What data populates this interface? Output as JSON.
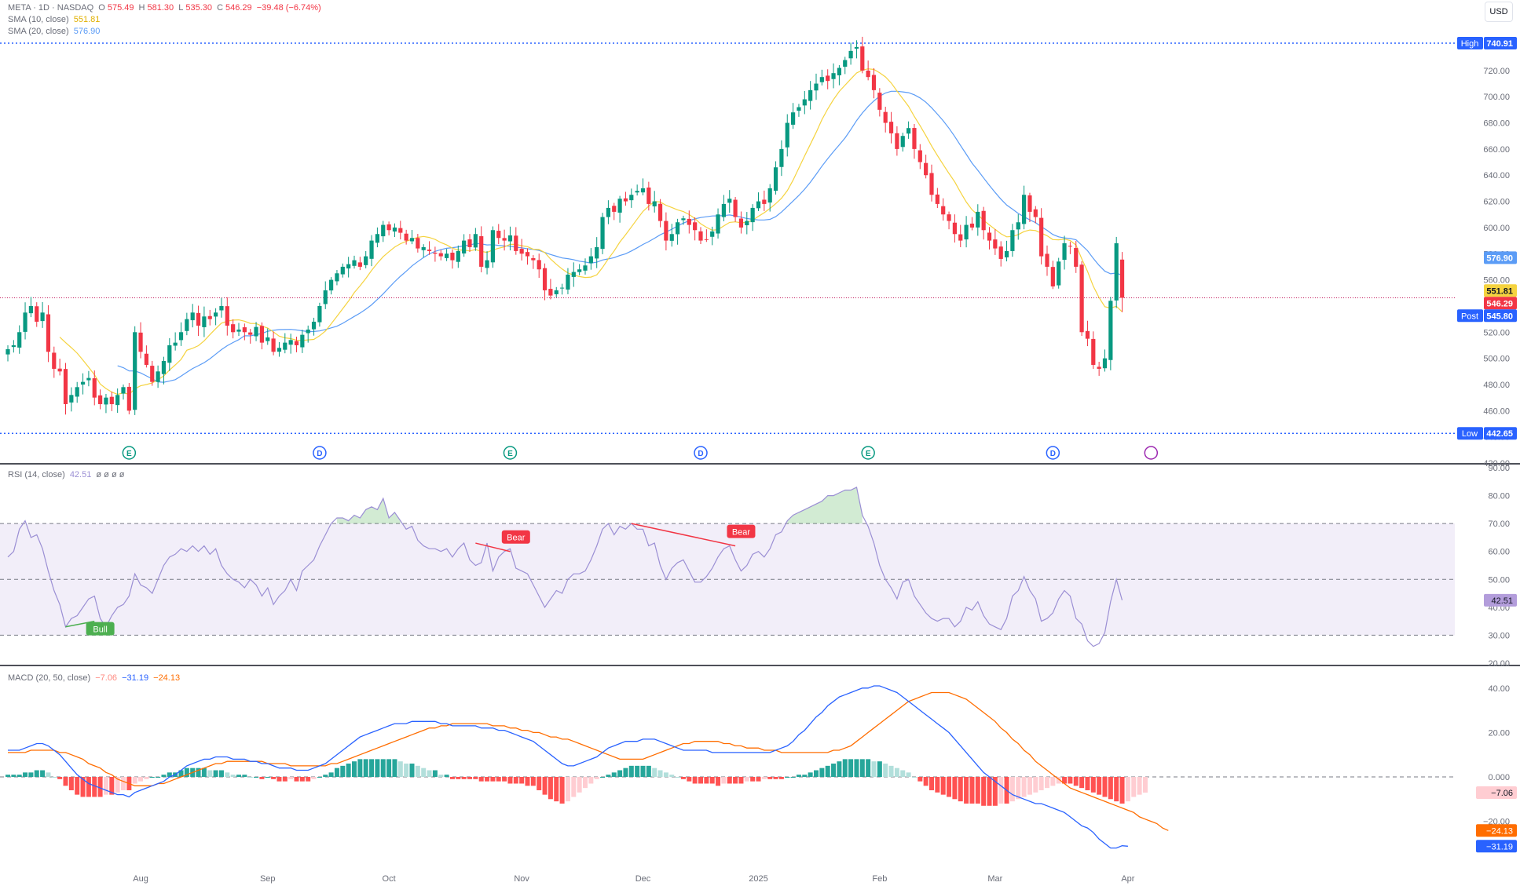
{
  "header": {
    "symbol": "META · 1D · NASDAQ",
    "o_label": "O",
    "o": "575.49",
    "h_label": "H",
    "h": "581.30",
    "l_label": "L",
    "l": "535.30",
    "c_label": "C",
    "c": "546.29",
    "change": "−39.48 (−6.74%)",
    "currency": "USD"
  },
  "indicators": {
    "sma10": {
      "label": "SMA (10, close)",
      "value": "551.81",
      "color": "#f5d33f"
    },
    "sma20": {
      "label": "SMA (20, close)",
      "value": "576.90",
      "color": "#5b9cf6"
    },
    "rsi": {
      "label": "RSI (14, close)",
      "value": "42.51",
      "extra": "ø ø ø ø",
      "color": "#9b8fd4"
    },
    "macd": {
      "label": "MACD (20, 50, close)",
      "hist": "−7.06",
      "macd": "−31.19",
      "signal": "−24.13",
      "macd_color": "#2962ff",
      "signal_color": "#ff6d00"
    }
  },
  "colors": {
    "up": "#089981",
    "down": "#f23645",
    "grid_text": "#6a6d78"
  },
  "chart_data": [
    {
      "type": "candlestick",
      "ylim": [
        420,
        745
      ],
      "yticks": [
        420,
        440,
        460,
        480,
        500,
        520,
        540,
        560,
        580,
        600,
        620,
        640,
        660,
        680,
        700,
        720
      ],
      "x_labels": [
        {
          "i": 23,
          "label": "Aug"
        },
        {
          "i": 45,
          "label": "Sep"
        },
        {
          "i": 66,
          "label": "Oct"
        },
        {
          "i": 89,
          "label": "Nov"
        },
        {
          "i": 110,
          "label": "Dec"
        },
        {
          "i": 130,
          "label": "2025"
        },
        {
          "i": 151,
          "label": "Feb"
        },
        {
          "i": 171,
          "label": "Mar"
        },
        {
          "i": 194,
          "label": "Apr"
        }
      ],
      "events": [
        {
          "i": 21,
          "label": "E"
        },
        {
          "i": 54,
          "label": "D"
        },
        {
          "i": 87,
          "label": "E"
        },
        {
          "i": 120,
          "label": "D"
        },
        {
          "i": 149,
          "label": "E"
        },
        {
          "i": 181,
          "label": "D"
        }
      ],
      "levels": {
        "high": {
          "label": "High",
          "value": 740.91
        },
        "low": {
          "label": "Low",
          "value": 442.65
        }
      },
      "price_labels": [
        {
          "value": 576.9,
          "text": "576.90",
          "bg": "#5b9cf6",
          "fg": "#ffffff"
        },
        {
          "value": 551.81,
          "text": "551.81",
          "bg": "#f5d33f",
          "fg": "#131722"
        },
        {
          "value": 546.29,
          "text": "546.29",
          "bg": "#f23645",
          "fg": "#ffffff"
        },
        {
          "value": 545.8,
          "text": "545.80",
          "bg": "#2962ff",
          "fg": "#ffffff",
          "tag": "Post"
        }
      ],
      "closes": [
        507,
        510,
        520,
        535,
        540,
        528,
        535,
        505,
        492,
        490,
        465,
        472,
        478,
        482,
        485,
        470,
        465,
        470,
        465,
        472,
        478,
        460,
        520,
        505,
        495,
        482,
        490,
        498,
        510,
        512,
        520,
        530,
        535,
        525,
        532,
        530,
        535,
        540,
        525,
        520,
        522,
        520,
        518,
        524,
        512,
        516,
        505,
        508,
        512,
        514,
        510,
        518,
        522,
        528,
        540,
        552,
        560,
        565,
        570,
        572,
        575,
        570,
        578,
        590,
        595,
        602,
        598,
        600,
        596,
        590,
        592,
        584,
        585,
        582,
        580,
        578,
        580,
        575,
        582,
        590,
        585,
        595,
        570,
        575,
        598,
        592,
        590,
        594,
        582,
        580,
        578,
        575,
        568,
        552,
        548,
        552,
        554,
        564,
        566,
        568,
        571,
        578,
        585,
        608,
        615,
        612,
        622,
        620,
        625,
        628,
        630,
        618,
        620,
        605,
        590,
        595,
        604,
        607,
        602,
        598,
        590,
        591,
        597,
        610,
        618,
        622,
        608,
        600,
        605,
        615,
        620,
        618,
        630,
        646,
        660,
        680,
        688,
        692,
        698,
        705,
        710,
        715,
        712,
        718,
        722,
        728,
        735,
        738,
        720,
        715,
        705,
        690,
        680,
        672,
        660,
        670,
        676,
        660,
        650,
        640,
        625,
        618,
        610,
        605,
        595,
        590,
        602,
        600,
        612,
        598,
        590,
        584,
        576,
        582,
        598,
        604,
        625,
        612,
        608,
        578,
        570,
        555,
        574,
        588,
        586,
        570,
        520,
        515,
        495,
        492,
        500,
        544,
        588,
        546
      ]
    },
    {
      "type": "line",
      "name": "RSI (14, close)",
      "ylim": [
        20,
        90
      ],
      "yticks": [
        20,
        30,
        40,
        50,
        60,
        70,
        80,
        90
      ],
      "bands": {
        "upper": 70,
        "middle": 50,
        "lower": 30
      },
      "values": [
        58,
        60,
        68,
        71,
        65,
        66,
        61,
        53,
        46,
        41,
        33,
        36,
        37,
        40,
        43,
        44,
        36,
        33,
        37,
        40,
        41,
        44,
        52,
        48,
        47,
        45,
        50,
        55,
        58,
        59,
        61,
        60,
        62,
        60,
        62,
        59,
        61,
        55,
        52,
        50,
        49,
        47,
        50,
        48,
        44,
        47,
        41,
        44,
        46,
        50,
        46,
        53,
        55,
        57,
        62,
        66,
        70,
        72,
        72,
        71,
        73,
        72,
        75,
        76,
        75,
        79,
        72,
        74,
        71,
        68,
        69,
        64,
        62,
        61,
        61,
        60,
        61,
        58,
        61,
        63,
        57,
        55,
        56,
        63,
        53,
        58,
        60,
        61,
        54,
        53,
        52,
        48,
        44,
        40,
        43,
        46,
        45,
        50,
        52,
        52,
        53,
        57,
        62,
        68,
        70,
        66,
        69,
        68,
        70,
        68,
        68,
        62,
        63,
        55,
        50,
        54,
        56,
        57,
        53,
        49,
        49,
        51,
        54,
        58,
        61,
        62,
        57,
        53,
        55,
        59,
        60,
        58,
        61,
        66,
        67,
        71,
        73,
        74,
        75,
        76,
        77,
        78,
        80,
        80,
        81,
        82,
        82,
        83,
        73,
        69,
        63,
        55,
        50,
        47,
        43,
        49,
        50,
        44,
        41,
        38,
        36,
        35,
        36,
        36,
        33,
        35,
        40,
        39,
        42,
        37,
        34,
        33,
        32,
        36,
        44,
        46,
        51,
        46,
        43,
        35,
        36,
        38,
        43,
        46,
        44,
        36,
        34,
        28,
        26,
        27,
        31,
        42,
        50,
        42.51
      ]
    },
    {
      "type": "line",
      "name": "MACD (20, 50, close)",
      "ylim": [
        -48,
        45
      ],
      "yticks": [
        -20,
        0,
        20,
        40
      ],
      "macd": [
        12,
        12,
        12,
        13,
        14,
        15,
        15,
        14,
        12,
        10,
        7,
        4,
        1,
        -1,
        -3,
        -4,
        -5,
        -6,
        -7,
        -8,
        -8,
        -9,
        -7,
        -6,
        -5,
        -4,
        -3,
        -2,
        0,
        1,
        3,
        5,
        6,
        7,
        8,
        8,
        9,
        9,
        9,
        8,
        8,
        8,
        7,
        7,
        6,
        6,
        5,
        4,
        4,
        4,
        3,
        3,
        3,
        4,
        5,
        6,
        8,
        10,
        12,
        14,
        16,
        18,
        19,
        20,
        21,
        22,
        23,
        24,
        24,
        24,
        25,
        25,
        25,
        25,
        25,
        24,
        24,
        23,
        23,
        23,
        23,
        23,
        22,
        22,
        22,
        21,
        21,
        20,
        19,
        18,
        17,
        16,
        14,
        12,
        10,
        8,
        6,
        5,
        5,
        6,
        7,
        8,
        9,
        11,
        13,
        14,
        15,
        16,
        16,
        16,
        17,
        17,
        17,
        16,
        15,
        14,
        13,
        12,
        12,
        12,
        12,
        12,
        11,
        11,
        11,
        11,
        11,
        11,
        11,
        11,
        11,
        11,
        11,
        12,
        13,
        14,
        16,
        19,
        21,
        24,
        27,
        29,
        32,
        34,
        36,
        37,
        38,
        39,
        40,
        40,
        41,
        41,
        40,
        39,
        38,
        36,
        34,
        32,
        30,
        28,
        26,
        24,
        22,
        20,
        17,
        14,
        11,
        8,
        5,
        2,
        0,
        -2,
        -4,
        -6,
        -8,
        -9,
        -10,
        -11,
        -12,
        -12,
        -13,
        -14,
        -15,
        -16,
        -18,
        -20,
        -22,
        -23,
        -25,
        -28,
        -30,
        -32,
        -32,
        -31,
        -31.19
      ],
      "signal": [
        11,
        11,
        11,
        11,
        12,
        12,
        12,
        12,
        12,
        11,
        11,
        10,
        9,
        8,
        6,
        5,
        4,
        2,
        1,
        -1,
        -2,
        -3,
        -4,
        -4,
        -4,
        -4,
        -3,
        -3,
        -2,
        -1,
        0,
        1,
        2,
        3,
        4,
        5,
        6,
        6,
        7,
        7,
        7,
        7,
        7,
        7,
        7,
        6,
        6,
        6,
        6,
        5,
        5,
        5,
        5,
        5,
        5,
        5,
        6,
        6,
        7,
        8,
        9,
        10,
        11,
        12,
        13,
        14,
        15,
        16,
        17,
        18,
        19,
        20,
        21,
        22,
        22,
        23,
        23,
        24,
        24,
        24,
        24,
        24,
        24,
        24,
        23,
        23,
        23,
        22,
        22,
        21,
        21,
        20,
        20,
        19,
        18,
        18,
        17,
        17,
        16,
        15,
        14,
        13,
        12,
        11,
        10,
        9,
        8,
        8,
        8,
        8,
        8,
        9,
        10,
        11,
        12,
        13,
        14,
        15,
        15,
        16,
        16,
        16,
        16,
        16,
        15,
        15,
        14,
        14,
        13,
        13,
        13,
        12,
        12,
        12,
        11,
        11,
        11,
        11,
        11,
        11,
        11,
        11,
        11,
        12,
        12,
        13,
        14,
        16,
        18,
        20,
        22,
        24,
        26,
        28,
        30,
        32,
        34,
        35,
        36,
        37,
        38,
        38,
        38,
        38,
        37,
        36,
        35,
        33,
        31,
        29,
        27,
        25,
        22,
        20,
        17,
        15,
        12,
        10,
        7,
        5,
        3,
        1,
        -1,
        -3,
        -5,
        -6,
        -7,
        -8,
        -9,
        -10,
        -11,
        -12,
        -13,
        -14,
        -15,
        -16,
        -18,
        -19,
        -20,
        -21,
        -23,
        -24.13
      ],
      "histogram": [
        1,
        1,
        1,
        2,
        2,
        3,
        3,
        2,
        0,
        -1,
        -4,
        -6,
        -8,
        -9,
        -9,
        -9,
        -9,
        -8,
        -8,
        -7,
        -6,
        -6,
        -3,
        -2,
        -1,
        0,
        0,
        1,
        2,
        2,
        3,
        4,
        4,
        4,
        4,
        3,
        3,
        3,
        2,
        1,
        1,
        1,
        0,
        0,
        -1,
        0,
        -1,
        -2,
        -2,
        -1,
        -2,
        -2,
        -2,
        -1,
        0,
        1,
        2,
        4,
        5,
        6,
        7,
        8,
        8,
        8,
        8,
        8,
        8,
        8,
        7,
        6,
        6,
        5,
        4,
        3,
        3,
        1,
        1,
        -1,
        -1,
        -1,
        -1,
        -1,
        -2,
        -2,
        -2,
        -2,
        -2,
        -3,
        -3,
        -3,
        -4,
        -4,
        -6,
        -8,
        -10,
        -11,
        -12,
        -11,
        -9,
        -7,
        -5,
        -3,
        -1,
        0,
        1,
        2,
        3,
        4,
        5,
        5,
        5,
        5,
        4,
        3,
        2,
        1,
        0,
        -1,
        -2,
        -3,
        -3,
        -3,
        -3,
        -4,
        -3,
        -3,
        -3,
        -3,
        -2,
        -2,
        -2,
        -1,
        -1,
        -1,
        -1,
        0,
        0,
        1,
        1,
        2,
        3,
        4,
        5,
        6,
        7,
        8,
        8,
        8,
        8,
        8,
        7,
        7,
        6,
        5,
        4,
        3,
        2,
        0,
        -2,
        -4,
        -6,
        -7,
        -8,
        -9,
        -10,
        -11,
        -12,
        -12,
        -12,
        -13,
        -13,
        -13,
        -12,
        -12,
        -11,
        -10,
        -9,
        -8,
        -7,
        -6,
        -5,
        -4,
        -3,
        -3,
        -3,
        -4,
        -5,
        -6,
        -7,
        -8,
        -9,
        -10,
        -11,
        -12,
        -11,
        -9,
        -8,
        -7.06
      ],
      "hist_colors": {
        "pos_strong": "#26a69a",
        "pos_weak": "#b2dfdb",
        "neg_strong": "#ff5252",
        "neg_weak": "#ffcdd2"
      }
    }
  ],
  "annotations": [
    {
      "label": "Bull",
      "color": "#4caf50",
      "from": [
        10,
        33
      ],
      "to": [
        15,
        35
      ],
      "label_i": 16
    },
    {
      "label": "Bear",
      "color": "#f23645",
      "from": [
        81,
        63
      ],
      "to": [
        87,
        60
      ],
      "label_i": 88
    },
    {
      "label": "Bear",
      "color": "#f23645",
      "from": [
        108,
        70
      ],
      "to": [
        126,
        62
      ],
      "label_i": 127
    }
  ]
}
